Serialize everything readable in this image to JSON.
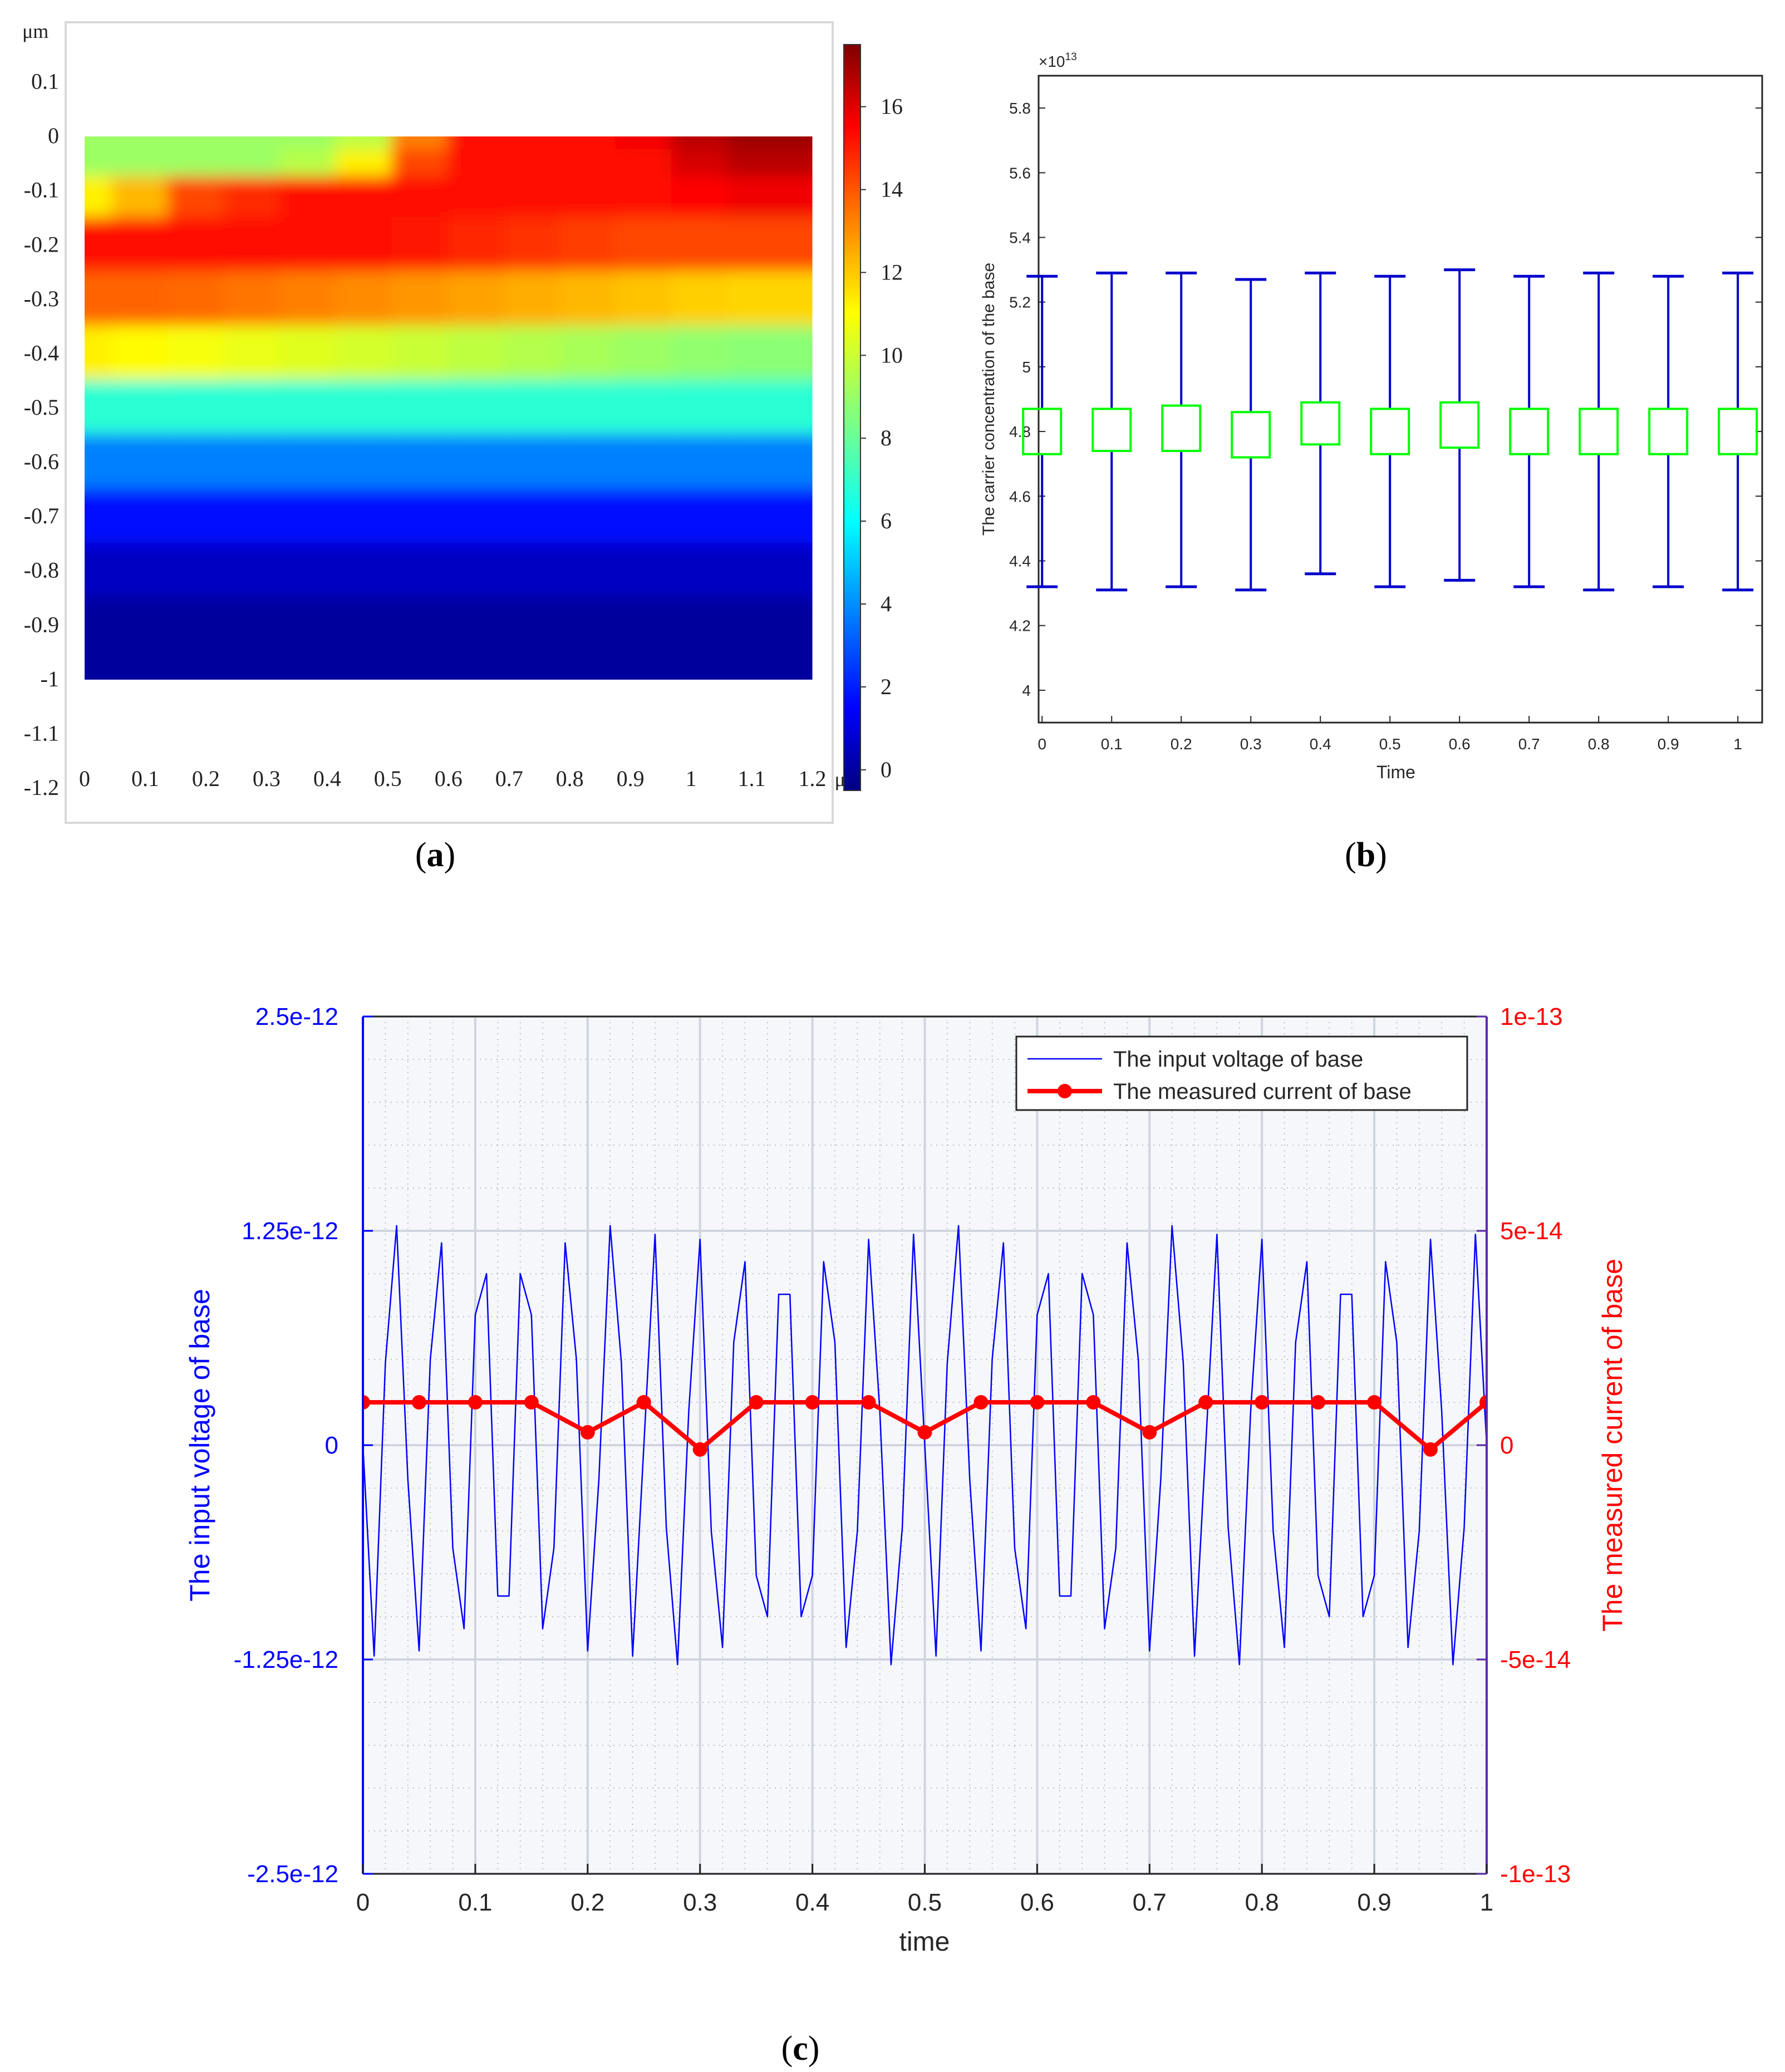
{
  "captions": {
    "a": "a",
    "b": "b",
    "c": "c"
  },
  "colors": {
    "blue": "#0000ff",
    "red": "#ff0000",
    "green": "#00ff00",
    "grid": "#cfd4de",
    "box_blue": "#0000cc"
  },
  "chart_data": [
    {
      "id": "a",
      "type": "heatmap",
      "title": "",
      "unit_label": "μm",
      "x_ticks": [
        "0",
        "0.1",
        "0.2",
        "0.3",
        "0.4",
        "0.5",
        "0.6",
        "0.7",
        "0.8",
        "0.9",
        "1",
        "1.1",
        "1.2"
      ],
      "y_ticks": [
        "0.1",
        "0",
        "-0.1",
        "-0.2",
        "-0.3",
        "-0.4",
        "-0.5",
        "-0.6",
        "-0.7",
        "-0.8",
        "-0.9",
        "-1",
        "-1.1",
        "-1.2"
      ],
      "xlim": [
        0,
        1.25
      ],
      "ylim": [
        -1.2,
        0.2
      ],
      "domain_x": [
        0,
        1.2
      ],
      "domain_y": [
        -1,
        0
      ],
      "colorbar_ticks": [
        "0",
        "2",
        "4",
        "6",
        "8",
        "10",
        "12",
        "14",
        "16"
      ],
      "colorbar_range": [
        -0.5,
        17.5
      ],
      "colormap": "jet",
      "field_rows": [
        {
          "y": 0,
          "values": [
            9,
            9,
            9,
            9,
            9,
            9.5,
            13,
            15,
            15,
            15,
            15.5,
            16.5,
            17,
            17
          ]
        },
        {
          "y": -0.05,
          "values": [
            9,
            9,
            9,
            9,
            9.5,
            11,
            14,
            15,
            15,
            15,
            15,
            16,
            16.5,
            16.5
          ]
        },
        {
          "y": -0.1,
          "values": [
            11,
            12,
            14,
            14.5,
            15,
            15,
            15,
            15,
            15,
            15,
            15,
            15.2,
            15.5,
            15.5
          ]
        },
        {
          "y": -0.2,
          "values": [
            15,
            15,
            15,
            15,
            15,
            15,
            14.8,
            14.6,
            14.4,
            14.2,
            14,
            14,
            14,
            14
          ]
        },
        {
          "y": -0.3,
          "values": [
            13.5,
            13.5,
            13.4,
            13.2,
            13,
            12.8,
            12.6,
            12.4,
            12.2,
            12,
            11.8,
            11.6,
            11.5,
            11.5
          ]
        },
        {
          "y": -0.4,
          "values": [
            11,
            10.8,
            10.6,
            10.4,
            10.2,
            10,
            9.8,
            9.6,
            9.4,
            9.2,
            9,
            8.8,
            8.7,
            8.7
          ]
        },
        {
          "y": -0.5,
          "values": [
            7,
            7,
            7,
            7,
            7,
            7,
            7,
            7,
            7,
            7,
            7,
            7,
            7,
            7
          ]
        },
        {
          "y": -0.6,
          "values": [
            4,
            4,
            4,
            4,
            4,
            4,
            4,
            4,
            4,
            4,
            4,
            4,
            4,
            4
          ]
        },
        {
          "y": -0.7,
          "values": [
            2,
            2,
            2,
            2,
            2,
            2,
            2,
            2,
            2,
            2,
            2,
            2,
            2,
            2
          ]
        },
        {
          "y": -0.8,
          "values": [
            0.7,
            0.7,
            0.7,
            0.7,
            0.7,
            0.7,
            0.7,
            0.7,
            0.7,
            0.7,
            0.7,
            0.7,
            0.7,
            0.7
          ]
        },
        {
          "y": -0.9,
          "values": [
            0,
            0,
            0,
            0,
            0,
            0,
            0,
            0,
            0,
            0,
            0,
            0,
            0,
            0
          ]
        },
        {
          "y": -1,
          "values": [
            0,
            0,
            0,
            0,
            0,
            0,
            0,
            0,
            0,
            0,
            0,
            0,
            0,
            0
          ]
        }
      ]
    },
    {
      "id": "b",
      "type": "box",
      "title": "",
      "xlabel": "Time",
      "ylabel": "The carrier concentration of the base",
      "exponent_label": "×10",
      "exponent_power": "13",
      "x_ticks": [
        "0",
        "0.1",
        "0.2",
        "0.3",
        "0.4",
        "0.5",
        "0.6",
        "0.7",
        "0.8",
        "0.9",
        "1"
      ],
      "y_ticks": [
        "4",
        "4.2",
        "4.4",
        "4.6",
        "4.8",
        "5",
        "5.2",
        "5.4",
        "5.6",
        "5.8"
      ],
      "xlim": [
        -0.005,
        1.035
      ],
      "ylim": [
        3.9,
        5.9
      ],
      "x": [
        0,
        0.1,
        0.2,
        0.3,
        0.4,
        0.5,
        0.6,
        0.7,
        0.8,
        0.9,
        1
      ],
      "whisker_high": [
        5.28,
        5.29,
        5.29,
        5.27,
        5.29,
        5.28,
        5.3,
        5.28,
        5.29,
        5.28,
        5.29
      ],
      "box_high": [
        4.87,
        4.87,
        4.88,
        4.86,
        4.89,
        4.87,
        4.89,
        4.87,
        4.87,
        4.87,
        4.87
      ],
      "box_low": [
        4.73,
        4.74,
        4.74,
        4.72,
        4.76,
        4.73,
        4.75,
        4.73,
        4.73,
        4.73,
        4.73
      ],
      "whisker_low": [
        4.32,
        4.31,
        4.32,
        4.31,
        4.36,
        4.32,
        4.34,
        4.32,
        4.31,
        4.32,
        4.31
      ]
    },
    {
      "id": "c",
      "type": "line",
      "title": "",
      "xlabel": "time",
      "ylabel_left": "The input voltage of base",
      "ylabel_right": "The measured current of base",
      "x_ticks": [
        "0",
        "0.1",
        "0.2",
        "0.3",
        "0.4",
        "0.5",
        "0.6",
        "0.7",
        "0.8",
        "0.9",
        "1"
      ],
      "y_left_ticks": [
        "-2.5e-12",
        "-1.25e-12",
        "0",
        "1.25e-12",
        "2.5e-12"
      ],
      "y_right_ticks": [
        "-1e-13",
        "-5e-14",
        "0",
        "5e-14",
        "1e-13"
      ],
      "xlim": [
        0,
        1
      ],
      "ylim_left": [
        -2.5e-12,
        2.5e-12
      ],
      "ylim_right": [
        -1e-13,
        1e-13
      ],
      "legend": [
        "The input voltage of base",
        "The measured current of base"
      ],
      "legend_position": "top-right",
      "series": [
        {
          "name": "The input voltage of base",
          "axis": "left",
          "x": [
            0,
            0.01,
            0.02,
            0.03,
            0.04,
            0.05,
            0.06,
            0.07,
            0.08,
            0.09,
            0.1,
            0.11,
            0.12,
            0.13,
            0.14,
            0.15,
            0.16,
            0.17,
            0.18,
            0.19,
            0.2,
            0.21,
            0.22,
            0.23,
            0.24,
            0.25,
            0.26,
            0.27,
            0.28,
            0.29,
            0.3,
            0.31,
            0.32,
            0.33,
            0.34,
            0.35,
            0.36,
            0.37,
            0.38,
            0.39,
            0.4,
            0.41,
            0.42,
            0.43,
            0.44,
            0.45,
            0.46,
            0.47,
            0.48,
            0.49,
            0.5,
            0.51,
            0.52,
            0.53,
            0.54,
            0.55,
            0.56,
            0.57,
            0.58,
            0.59,
            0.6,
            0.61,
            0.62,
            0.63,
            0.64,
            0.65,
            0.66,
            0.67,
            0.68,
            0.69,
            0.7,
            0.71,
            0.72,
            0.73,
            0.74,
            0.75,
            0.76,
            0.77,
            0.78,
            0.79,
            0.8,
            0.81,
            0.82,
            0.83,
            0.84,
            0.85,
            0.86,
            0.87,
            0.88,
            0.89,
            0.9,
            0.91,
            0.92,
            0.93,
            0.94,
            0.95,
            0.96,
            0.97,
            0.98,
            0.99,
            1
          ],
          "values": [
            0,
            -1.23e-12,
            4.8e-13,
            1.28e-12,
            -2e-13,
            -1.2e-12,
            5e-13,
            1.18e-12,
            -6e-13,
            -1.07e-12,
            7.6e-13,
            1e-12,
            -8.8e-13,
            -8.8e-13,
            1e-12,
            7.6e-13,
            -1.07e-12,
            -6e-13,
            1.18e-12,
            5e-13,
            -1.2e-12,
            -2e-13,
            1.28e-12,
            4.8e-13,
            -1.23e-12,
            0,
            1.23e-12,
            -4.8e-13,
            -1.28e-12,
            2e-13,
            1.2e-12,
            -5e-13,
            -1.18e-12,
            6e-13,
            1.07e-12,
            -7.6e-13,
            -1e-12,
            8.8e-13,
            8.8e-13,
            -1e-12,
            -7.6e-13,
            1.07e-12,
            6e-13,
            -1.18e-12,
            -5e-13,
            1.2e-12,
            2e-13,
            -1.28e-12,
            -4.8e-13,
            1.23e-12,
            0,
            -1.23e-12,
            4.8e-13,
            1.28e-12,
            -2e-13,
            -1.2e-12,
            5e-13,
            1.18e-12,
            -6e-13,
            -1.07e-12,
            7.6e-13,
            1e-12,
            -8.8e-13,
            -8.8e-13,
            1e-12,
            7.6e-13,
            -1.07e-12,
            -6e-13,
            1.18e-12,
            5e-13,
            -1.2e-12,
            -2e-13,
            1.28e-12,
            4.8e-13,
            -1.23e-12,
            0,
            1.23e-12,
            -4.8e-13,
            -1.28e-12,
            2e-13,
            1.2e-12,
            -5e-13,
            -1.18e-12,
            6e-13,
            1.07e-12,
            -7.6e-13,
            -1e-12,
            8.8e-13,
            8.8e-13,
            -1e-12,
            -7.6e-13,
            1.07e-12,
            6e-13,
            -1.18e-12,
            -5e-13,
            1.2e-12,
            2e-13,
            -1.28e-12,
            -4.8e-13,
            1.23e-12,
            0
          ]
        },
        {
          "name": "The measured current of base",
          "axis": "right",
          "x": [
            0,
            0.05,
            0.1,
            0.15,
            0.2,
            0.25,
            0.3,
            0.35,
            0.4,
            0.45,
            0.5,
            0.55,
            0.6,
            0.65,
            0.7,
            0.75,
            0.8,
            0.85,
            0.9,
            0.95,
            1
          ],
          "values": [
            1e-14,
            1e-14,
            1e-14,
            1e-14,
            3e-15,
            1e-14,
            -1e-15,
            1e-14,
            1e-14,
            1e-14,
            3e-15,
            1e-14,
            1e-14,
            1e-14,
            3e-15,
            1e-14,
            1e-14,
            1e-14,
            1e-14,
            -1e-15,
            1e-14
          ]
        }
      ]
    }
  ]
}
